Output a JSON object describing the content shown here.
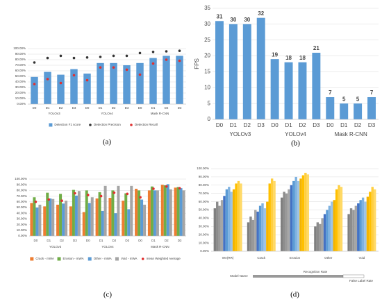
{
  "chart_data": [
    {
      "type": "bar",
      "categories": [
        "D0",
        "D1",
        "D2",
        "D3",
        "D0",
        "D1",
        "D2",
        "D3",
        "D0",
        "D1",
        "D2",
        "D3"
      ],
      "groups": [
        "YOLOv3",
        "YOLOv4",
        "Mask R-CNN"
      ],
      "series": [
        {
          "name": "Detection F1 score",
          "color": "#5b9bd5",
          "values": [
            49,
            58,
            53,
            63,
            55,
            74,
            74,
            70,
            74,
            83,
            87,
            87
          ]
        },
        {
          "name": "Detection Precision",
          "color": "#333333",
          "style": "dot",
          "values": [
            75,
            83,
            87,
            83,
            84,
            85,
            87,
            87,
            92,
            94,
            95,
            96
          ]
        },
        {
          "name": "Detection Recall",
          "color": "#e03030",
          "style": "dot",
          "values": [
            36,
            45,
            38,
            52,
            43,
            66,
            66,
            62,
            53,
            73,
            80,
            78
          ]
        }
      ],
      "ylim": [
        0,
        100
      ],
      "yticks": [
        {
          "value": 0,
          "label": "0.00%"
        },
        {
          "value": 10,
          "label": "10.00%"
        },
        {
          "value": 20,
          "label": "20.00%"
        },
        {
          "value": 30,
          "label": "30.00%"
        },
        {
          "value": 40,
          "label": "40.00%"
        },
        {
          "value": 50,
          "label": "50.00%"
        },
        {
          "value": 60,
          "label": "60.00%"
        },
        {
          "value": 70,
          "label": "70.00%"
        },
        {
          "value": 80,
          "label": "80.00%"
        },
        {
          "value": 90,
          "label": "90.00%"
        },
        {
          "value": 100,
          "label": "100.00%"
        }
      ],
      "grid": true,
      "caption": "(a)"
    },
    {
      "type": "bar",
      "categories": [
        "D0",
        "D1",
        "D2",
        "D3",
        "D0",
        "D1",
        "D2",
        "D3",
        "D0",
        "D1",
        "D2",
        "D3"
      ],
      "groups": [
        "YOLOv3",
        "YOLOv4",
        "Mask R-CNN"
      ],
      "y_label": "FPS",
      "series": [
        {
          "color": "#5b9bd5",
          "values": [
            31,
            30,
            30,
            32,
            19,
            18,
            18,
            21,
            7,
            5,
            5,
            7
          ]
        }
      ],
      "data_labels": true,
      "ylim": [
        0,
        35
      ],
      "yticks": [
        0,
        5,
        10,
        15,
        20,
        25,
        30,
        35
      ],
      "grid": true,
      "caption": "(b)"
    },
    {
      "type": "bar",
      "categories": [
        "D0",
        "D1",
        "D2",
        "D3",
        "D0",
        "D1",
        "D2",
        "D3",
        "D0",
        "D1",
        "D2",
        "D3"
      ],
      "groups": [
        "YOLOv3",
        "YOLOv4",
        "Mask R-CNN"
      ],
      "series": [
        {
          "name": "Crack - mWA",
          "color": "#ed7d31",
          "values": [
            58,
            52,
            55,
            52,
            42,
            66,
            67,
            62,
            83,
            80,
            90,
            85
          ]
        },
        {
          "name": "Erosion - mWA",
          "color": "#70ad47",
          "values": [
            68,
            76,
            74,
            81,
            80,
            77,
            80,
            75,
            80,
            87,
            89,
            86
          ]
        },
        {
          "name": "Other - mWA",
          "color": "#5b9bd5",
          "values": [
            50,
            66,
            57,
            71,
            58,
            44,
            40,
            47,
            64,
            80,
            91,
            84
          ]
        },
        {
          "name": "Void - mWA",
          "color": "#a5a5a5",
          "values": [
            55,
            65,
            62,
            79,
            68,
            88,
            88,
            88,
            55,
            80,
            82,
            80
          ]
        },
        {
          "name": "mean Weighted Average",
          "color": "#e03030",
          "style": "dot",
          "values": [
            60,
            64,
            62,
            75,
            72,
            70,
            76,
            74,
            68,
            83,
            87,
            84
          ]
        }
      ],
      "ylim": [
        0,
        100
      ],
      "yticks": [
        {
          "value": 0,
          "label": "0.00%"
        },
        {
          "value": 10,
          "label": "10.00%"
        },
        {
          "value": 20,
          "label": "20.00%"
        },
        {
          "value": 30,
          "label": "30.00%"
        },
        {
          "value": 40,
          "label": "40.00%"
        },
        {
          "value": 50,
          "label": "50.00%"
        },
        {
          "value": 60,
          "label": "60.00%"
        },
        {
          "value": 70,
          "label": "70.00%"
        },
        {
          "value": 80,
          "label": "80.00%"
        },
        {
          "value": 90,
          "label": "90.00%"
        },
        {
          "value": 100,
          "label": "100.00%"
        }
      ],
      "grid": true,
      "caption": "(c)"
    },
    {
      "type": "bar",
      "categories": [
        "WA(RR)",
        "Crack",
        "Erosion",
        "Other",
        "Void"
      ],
      "series": [
        {
          "color": "#7f7f7f",
          "values": [
            52,
            35,
            65,
            30,
            45
          ]
        },
        {
          "color": "#8c8c8c",
          "values": [
            60,
            42,
            72,
            35,
            52
          ]
        },
        {
          "color": "#999999",
          "values": [
            55,
            38,
            70,
            33,
            50
          ]
        },
        {
          "color": "#a6a6a6",
          "values": [
            62,
            50,
            75,
            40,
            55
          ]
        },
        {
          "color": "#4472c4",
          "values": [
            67,
            48,
            80,
            45,
            58
          ]
        },
        {
          "color": "#5b9bd5",
          "values": [
            75,
            55,
            85,
            50,
            62
          ]
        },
        {
          "color": "#7fb2e0",
          "values": [
            78,
            58,
            90,
            55,
            65
          ]
        },
        {
          "color": "#9dc3e6",
          "values": [
            72,
            52,
            85,
            60,
            60
          ]
        },
        {
          "color": "#f4b400",
          "values": [
            75,
            60,
            88,
            62,
            66
          ]
        },
        {
          "color": "#ffc000",
          "values": [
            82,
            82,
            92,
            75,
            72
          ]
        },
        {
          "color": "#ffcf40",
          "values": [
            85,
            88,
            95,
            80,
            78
          ]
        },
        {
          "color": "#ffd966",
          "values": [
            82,
            85,
            93,
            78,
            75
          ]
        }
      ],
      "ylim": [
        0,
        100
      ],
      "yticks": [
        {
          "value": 0,
          "label": "0.00%"
        },
        {
          "value": 10,
          "label": "10.00%"
        },
        {
          "value": 20,
          "label": "20.00%"
        },
        {
          "value": 30,
          "label": "30.00%"
        },
        {
          "value": 40,
          "label": "40.00%"
        },
        {
          "value": 50,
          "label": "50.00%"
        },
        {
          "value": 60,
          "label": "60.00%"
        },
        {
          "value": 70,
          "label": "70.00%"
        },
        {
          "value": 80,
          "label": "80.00%"
        },
        {
          "value": 90,
          "label": "90.00%"
        },
        {
          "value": 100,
          "label": "100.00%"
        }
      ],
      "grid": true,
      "annotations": [
        "Model Name",
        "Recognition Rate",
        "False Label Rate"
      ],
      "caption": "(d)"
    }
  ]
}
